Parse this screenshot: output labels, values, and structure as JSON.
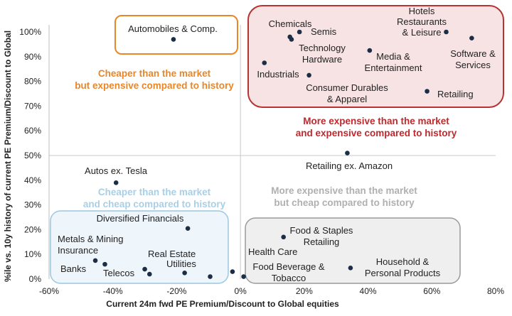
{
  "chart_data": {
    "type": "scatter",
    "xlabel": "Current 24m fwd PE Premium/Discount to Global equities",
    "ylabel": "%ile vs. 10y history of current PE Premium/Discount to Global",
    "xlim": [
      -0.6,
      0.8
    ],
    "ylim": [
      0,
      1.0
    ],
    "x_ticks": [
      "-60%",
      "-40%",
      "-20%",
      "0%",
      "20%",
      "40%",
      "60%",
      "80%"
    ],
    "y_ticks": [
      "0%",
      "10%",
      "20%",
      "30%",
      "40%",
      "50%",
      "60%",
      "70%",
      "80%",
      "90%",
      "100%"
    ],
    "grid": false,
    "point_color": "#1c2e45",
    "points": [
      {
        "label": "Automobiles & Comp.",
        "x": -0.21,
        "y": 0.97
      },
      {
        "label": "Chemicals",
        "x": 0.155,
        "y": 0.98
      },
      {
        "label": "Semis",
        "x": 0.185,
        "y": 1.0
      },
      {
        "label": "Technology Hardware",
        "x": 0.16,
        "y": 0.97
      },
      {
        "label": "Hotels Restaurants & Leisure",
        "x": 0.645,
        "y": 1.0
      },
      {
        "label": "Software & Services",
        "x": 0.725,
        "y": 0.975
      },
      {
        "label": "Industrials",
        "x": 0.075,
        "y": 0.875
      },
      {
        "label": "Media & Entertainment",
        "x": 0.405,
        "y": 0.925
      },
      {
        "label": "Consumer Durables & Apparel",
        "x": 0.215,
        "y": 0.825
      },
      {
        "label": "Retailing",
        "x": 0.585,
        "y": 0.76
      },
      {
        "label": "Retailing ex. Amazon",
        "x": 0.335,
        "y": 0.51
      },
      {
        "label": "Autos ex. Tesla",
        "x": -0.39,
        "y": 0.39
      },
      {
        "label": "Diversified Financials",
        "x": -0.165,
        "y": 0.205
      },
      {
        "label": "Metals & Mining",
        "x": -0.425,
        "y": 0.06
      },
      {
        "label": "Insurance",
        "x": -0.3,
        "y": 0.04
      },
      {
        "label": "Banks",
        "x": -0.455,
        "y": 0.075
      },
      {
        "label": "Telecos",
        "x": -0.285,
        "y": 0.02
      },
      {
        "label": "Real Estate",
        "x": -0.175,
        "y": 0.025
      },
      {
        "label": "Utilities",
        "x": -0.095,
        "y": 0.01
      },
      {
        "label": "Health Care",
        "x": -0.025,
        "y": 0.03
      },
      {
        "label": "Food Beverage & Tobacco",
        "x": 0.01,
        "y": 0.01
      },
      {
        "label": "Food & Staples Retailing",
        "x": 0.135,
        "y": 0.17
      },
      {
        "label": "Household & Personal Products",
        "x": 0.345,
        "y": 0.045
      }
    ],
    "quadrants": [
      {
        "text": [
          "Cheaper than the market",
          "but expensive compared to history"
        ],
        "color": "#e8862a",
        "box": false
      },
      {
        "text": [
          "More expensive than the market",
          "and expensive compared to history"
        ],
        "color": "#c0282d",
        "box": true,
        "box_fill": "#f7e3e3",
        "box_stroke": "#b83232"
      },
      {
        "text": [
          "Cheaper than the market",
          "and cheap compared to history"
        ],
        "color": "#a9cfe6",
        "box": true,
        "box_fill": "#eef5fb",
        "box_stroke": "#9cc6e2"
      },
      {
        "text": [
          "More expensive than the market",
          "but cheap compared to history"
        ],
        "color": "#b0b0b0",
        "box": true,
        "box_fill": "#efefef",
        "box_stroke": "#9a9a9a"
      }
    ],
    "highlight_box_stroke": "#e8862a"
  }
}
